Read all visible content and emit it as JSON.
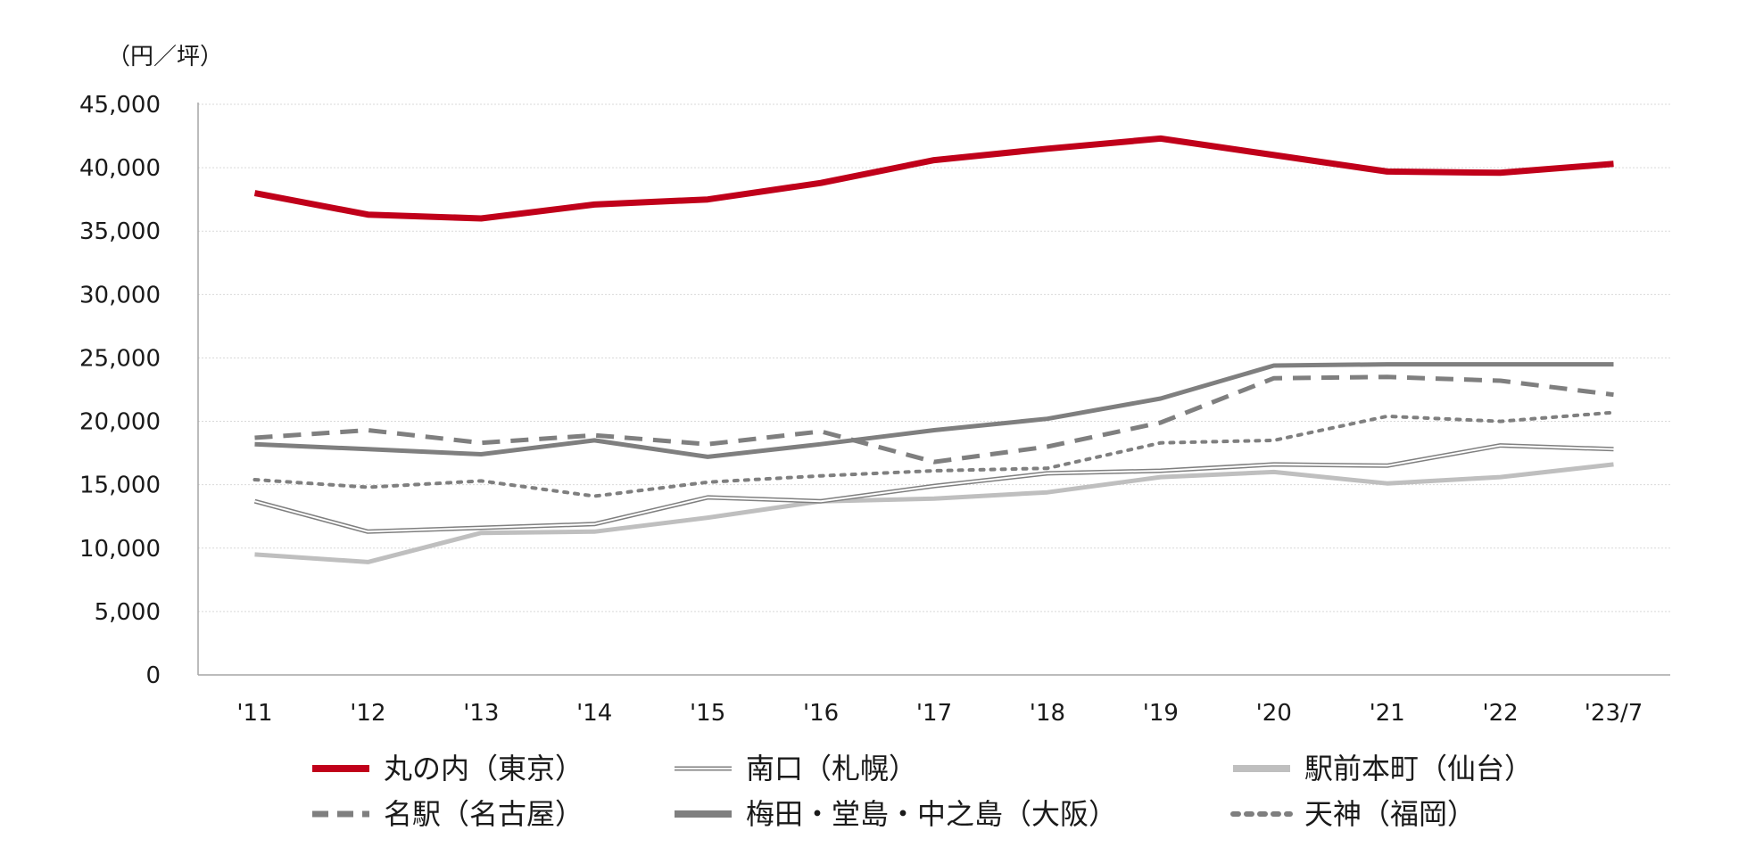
{
  "chart_data": {
    "type": "line",
    "y_unit_label": "（円／坪）",
    "categories": [
      "'11",
      "'12",
      "'13",
      "'14",
      "'15",
      "'16",
      "'17",
      "'18",
      "'19",
      "'20",
      "'21",
      "'22",
      "'23/7"
    ],
    "ylim": [
      0,
      45000
    ],
    "yticks": [
      0,
      5000,
      10000,
      15000,
      20000,
      25000,
      30000,
      35000,
      40000,
      45000
    ],
    "ytick_labels": [
      "0",
      "5,000",
      "10,000",
      "15,000",
      "20,000",
      "25,000",
      "30,000",
      "35,000",
      "40,000",
      "45,000"
    ],
    "grid": true,
    "legend_position": "bottom",
    "series": [
      {
        "name": "丸の内（東京）",
        "color": "#c0001a",
        "style": "thick-solid",
        "values": [
          38000,
          36300,
          36000,
          37100,
          37500,
          38800,
          40600,
          41500,
          42300,
          41000,
          39700,
          39600,
          40300
        ]
      },
      {
        "name": "南口（札幌）",
        "color": "#7f7f7f",
        "style": "double",
        "values": [
          13700,
          11300,
          11600,
          11900,
          14000,
          13700,
          14900,
          15900,
          16100,
          16600,
          16500,
          18100,
          17800
        ]
      },
      {
        "name": "駅前本町（仙台）",
        "color": "#bfbfbf",
        "style": "solid",
        "values": [
          9500,
          8900,
          11200,
          11300,
          12400,
          13700,
          13900,
          14400,
          15600,
          16000,
          15100,
          15600,
          16600
        ]
      },
      {
        "name": "名駅（名古屋）",
        "color": "#7f7f7f",
        "style": "dashed",
        "values": [
          18700,
          19300,
          18300,
          18900,
          18200,
          19200,
          16800,
          18000,
          19900,
          23400,
          23500,
          23200,
          22100
        ]
      },
      {
        "name": "梅田・堂島・中之島（大阪）",
        "color": "#7f7f7f",
        "style": "solid",
        "values": [
          18200,
          17800,
          17400,
          18500,
          17200,
          18200,
          19300,
          20200,
          21800,
          24400,
          24500,
          24500,
          24500
        ]
      },
      {
        "name": "天神（福岡）",
        "color": "#7f7f7f",
        "style": "dotted",
        "values": [
          15400,
          14800,
          15300,
          14100,
          15200,
          15700,
          16100,
          16300,
          18300,
          18500,
          20400,
          20000,
          20700
        ]
      }
    ]
  }
}
